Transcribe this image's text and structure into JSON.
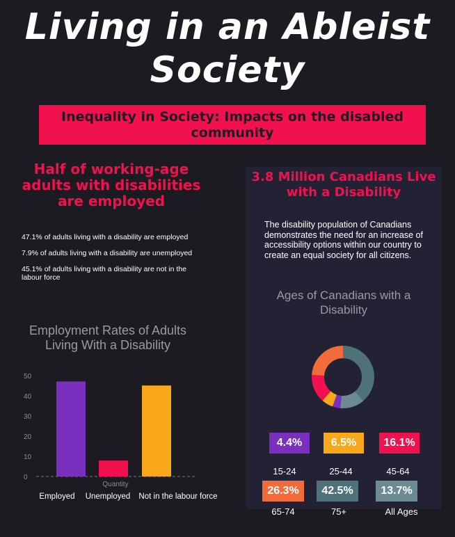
{
  "header": {
    "title": "Living in an Ableist Society",
    "banner": "Inequality in Society: Impacts on the disabled community"
  },
  "employment": {
    "heading": "Half of working-age adults with disabilities are employed",
    "stats": [
      "47.1% of adults living with a disability are employed",
      "7.9% of adults living with a disability are unemployed",
      "45.1% of adults living with a disability are not in the labour force"
    ]
  },
  "population": {
    "heading": "3.8 Million Canadians Live with a Disability",
    "description": "The disability population of Canadians demonstrates the need for an increase of accessibility options within our country to create an equal society for all citizens."
  },
  "chart_data": [
    {
      "type": "bar",
      "title": "Employment Rates of Adults Living With a Disability",
      "xlabel": "Quantity",
      "ylabel": "",
      "categories": [
        "Employed",
        "Unemployed",
        "Not in the labour force"
      ],
      "values": [
        47.1,
        7.9,
        45.1
      ],
      "colors": [
        "#7b2fbe",
        "#f2114f",
        "#f9a81a"
      ],
      "ylim": [
        0,
        50
      ],
      "yticks": [
        0,
        10,
        20,
        30,
        40,
        50
      ],
      "grid": false,
      "legend": "none"
    },
    {
      "type": "pie",
      "title": "Ages of Canadians with a Disability",
      "categories": [
        "15-24",
        "25-44",
        "45-64",
        "65-74",
        "75+",
        "All Ages"
      ],
      "values": [
        4.4,
        6.5,
        16.1,
        26.3,
        42.5,
        13.7
      ],
      "labels": [
        "4.4%",
        "6.5%",
        "16.1%",
        "26.3%",
        "42.5%",
        "13.7%"
      ],
      "colors": [
        "#7b2fbe",
        "#f9a81a",
        "#f2114f",
        "#f26b3a",
        "#4e7278",
        "#6b8a91"
      ],
      "legend": "bottom"
    }
  ]
}
